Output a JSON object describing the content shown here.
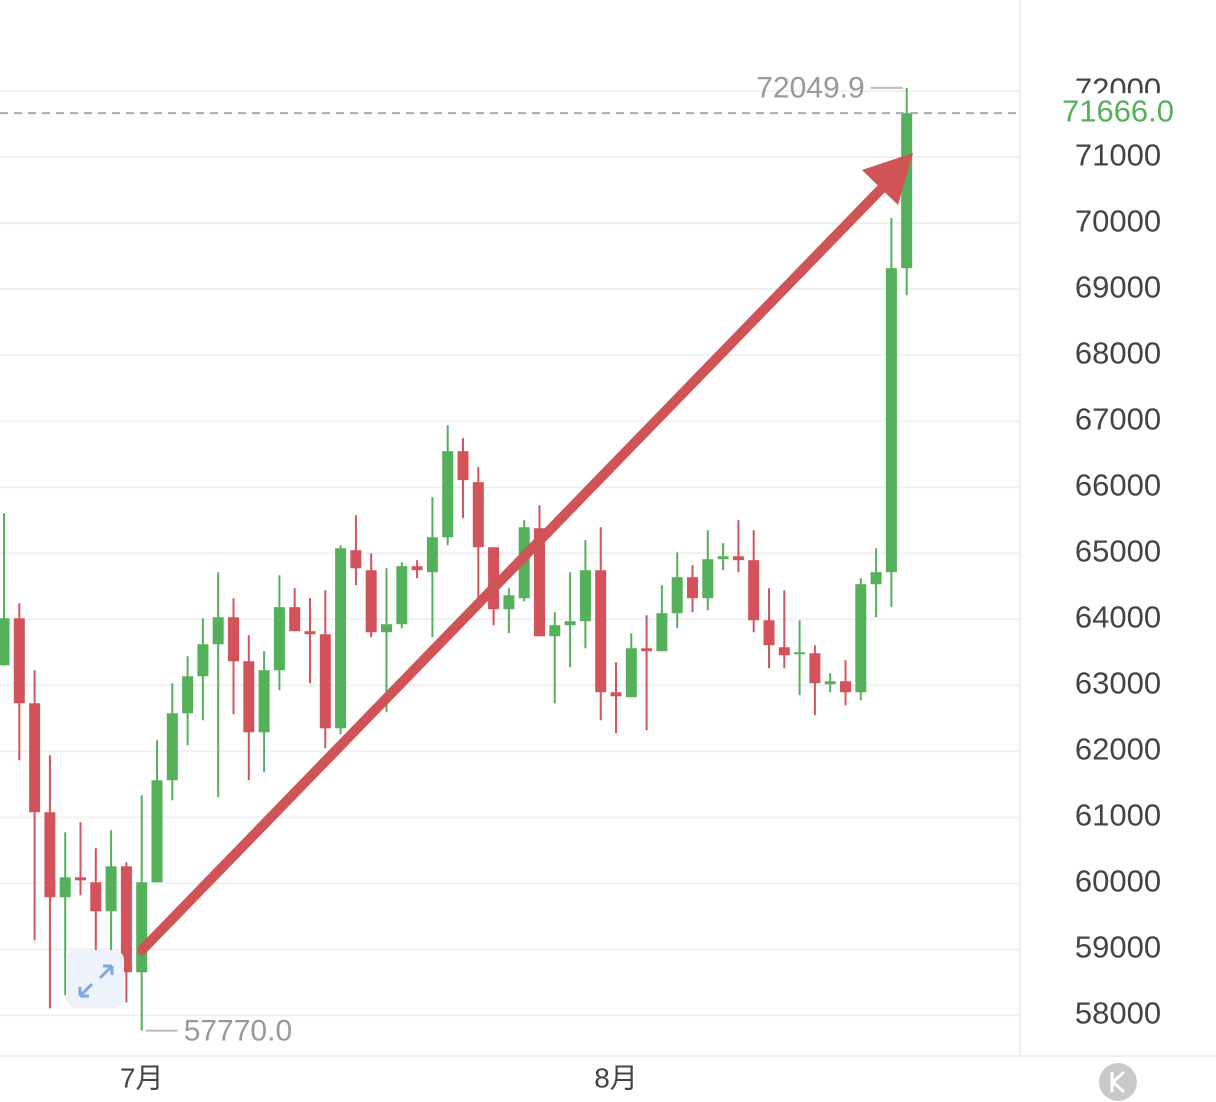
{
  "chart_data": {
    "type": "candlestick",
    "categories": [
      null,
      null,
      null,
      null,
      null,
      null,
      null,
      null,
      null,
      "7月",
      null,
      null,
      null,
      null,
      null,
      null,
      null,
      null,
      null,
      null,
      null,
      null,
      null,
      null,
      null,
      null,
      null,
      null,
      null,
      null,
      null,
      null,
      null,
      null,
      null,
      null,
      null,
      null,
      null,
      null,
      "8月",
      null,
      null,
      null,
      null,
      null,
      null,
      null,
      null,
      null,
      null,
      null,
      null,
      null,
      null,
      null,
      null,
      null,
      null,
      null
    ],
    "open": [
      63303,
      64015,
      62728,
      61077,
      59789,
      60092,
      60016,
      59577,
      60258,
      58653,
      60016,
      61561,
      62576,
      63137,
      63622,
      64031,
      63364,
      62288,
      63228,
      64183,
      63819,
      63773,
      62349,
      65046,
      64743,
      63804,
      63925,
      64804,
      64713,
      65243,
      66546,
      66077,
      65091,
      64152,
      64319,
      65379,
      63743,
      63910,
      63971,
      64743,
      62895,
      62819,
      63561,
      63516,
      64092,
      64637,
      64319,
      64910,
      64955,
      64895,
      63985,
      63576,
      63470,
      63485,
      63016,
      63061,
      62895,
      64531,
      64713,
      69318
    ],
    "high": [
      65606,
      64243,
      63228,
      61940,
      60774,
      60925,
      60531,
      60804,
      60319,
      61334,
      62167,
      63031,
      63440,
      64016,
      64713,
      64319,
      63758,
      63516,
      64667,
      64470,
      64319,
      64440,
      65122,
      65576,
      64999,
      64773,
      64864,
      64895,
      65849,
      66940,
      66743,
      66304,
      65091,
      64470,
      65501,
      65728,
      64107,
      64713,
      65198,
      65394,
      63349,
      63788,
      64061,
      64516,
      65016,
      64819,
      65349,
      65152,
      65501,
      65349,
      64470,
      64440,
      63985,
      63607,
      63182,
      63379,
      64622,
      65076,
      70076,
      72049.9
    ],
    "low": [
      63300,
      61865,
      59138,
      58107,
      58304,
      59819,
      58910,
      58713,
      58198,
      57770,
      60016,
      61258,
      62092,
      62470,
      61304,
      62561,
      61561,
      61683,
      62925,
      63819,
      63031,
      62046,
      62258,
      64516,
      63728,
      62592,
      63864,
      64622,
      63728,
      65122,
      65531,
      64167,
      63910,
      63789,
      64273,
      63743,
      62728,
      63273,
      63561,
      62470,
      62274,
      62819,
      62319,
      63516,
      63865,
      64107,
      64137,
      64743,
      64713,
      63804,
      63258,
      63258,
      62849,
      62546,
      62895,
      62698,
      62774,
      64031,
      64183,
      68909
    ],
    "close": [
      64015,
      62728,
      61077,
      59789,
      60092,
      60045,
      59577,
      60258,
      58653,
      60016,
      61561,
      62576,
      63137,
      63622,
      64031,
      63364,
      62288,
      63228,
      64183,
      63819,
      63773,
      62349,
      65076,
      64773,
      63804,
      63925,
      64804,
      64743,
      65243,
      66546,
      66107,
      65091,
      64152,
      64364,
      65394,
      63743,
      63910,
      63971,
      64743,
      62895,
      62834,
      63561,
      63516,
      64092,
      64637,
      64319,
      64910,
      64955,
      64895,
      63985,
      63607,
      63455,
      63500,
      63031,
      63061,
      62895,
      64531,
      64713,
      69318,
      71666
    ],
    "up_color": "#55b05a",
    "down_color": "#d4535a",
    "ylim": [
      57400,
      73380
    ],
    "yticks": [
      58000,
      59000,
      60000,
      61000,
      62000,
      63000,
      64000,
      65000,
      66000,
      67000,
      68000,
      69000,
      70000,
      71000,
      72000
    ],
    "grid": true,
    "high_marker": {
      "value": 72049.9,
      "label": "72049.9"
    },
    "low_marker": {
      "value": 57770,
      "label": "57770.0"
    },
    "last_price": {
      "value": 71666,
      "label": "71666.0"
    }
  }
}
